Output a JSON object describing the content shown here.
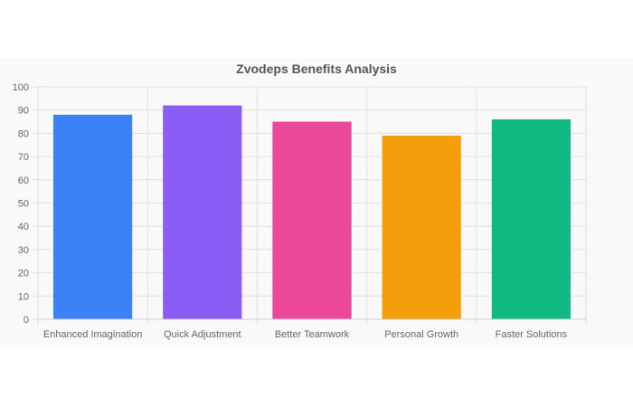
{
  "chart_data": {
    "type": "bar",
    "title": "Zvodeps Benefits Analysis",
    "categories": [
      "Enhanced Imagination",
      "Quick Adjustment",
      "Better Teamwork",
      "Personal Growth",
      "Faster Solutions"
    ],
    "values": [
      88,
      92,
      85,
      79,
      86
    ],
    "colors": [
      "#3b82f6",
      "#8b5cf6",
      "#ec4899",
      "#f59e0b",
      "#10b981"
    ],
    "xlabel": "",
    "ylabel": "",
    "ylim": [
      0,
      100
    ],
    "yticks": [
      0,
      10,
      20,
      30,
      40,
      50,
      60,
      70,
      80,
      90,
      100
    ],
    "grid": true,
    "legend": "none"
  }
}
